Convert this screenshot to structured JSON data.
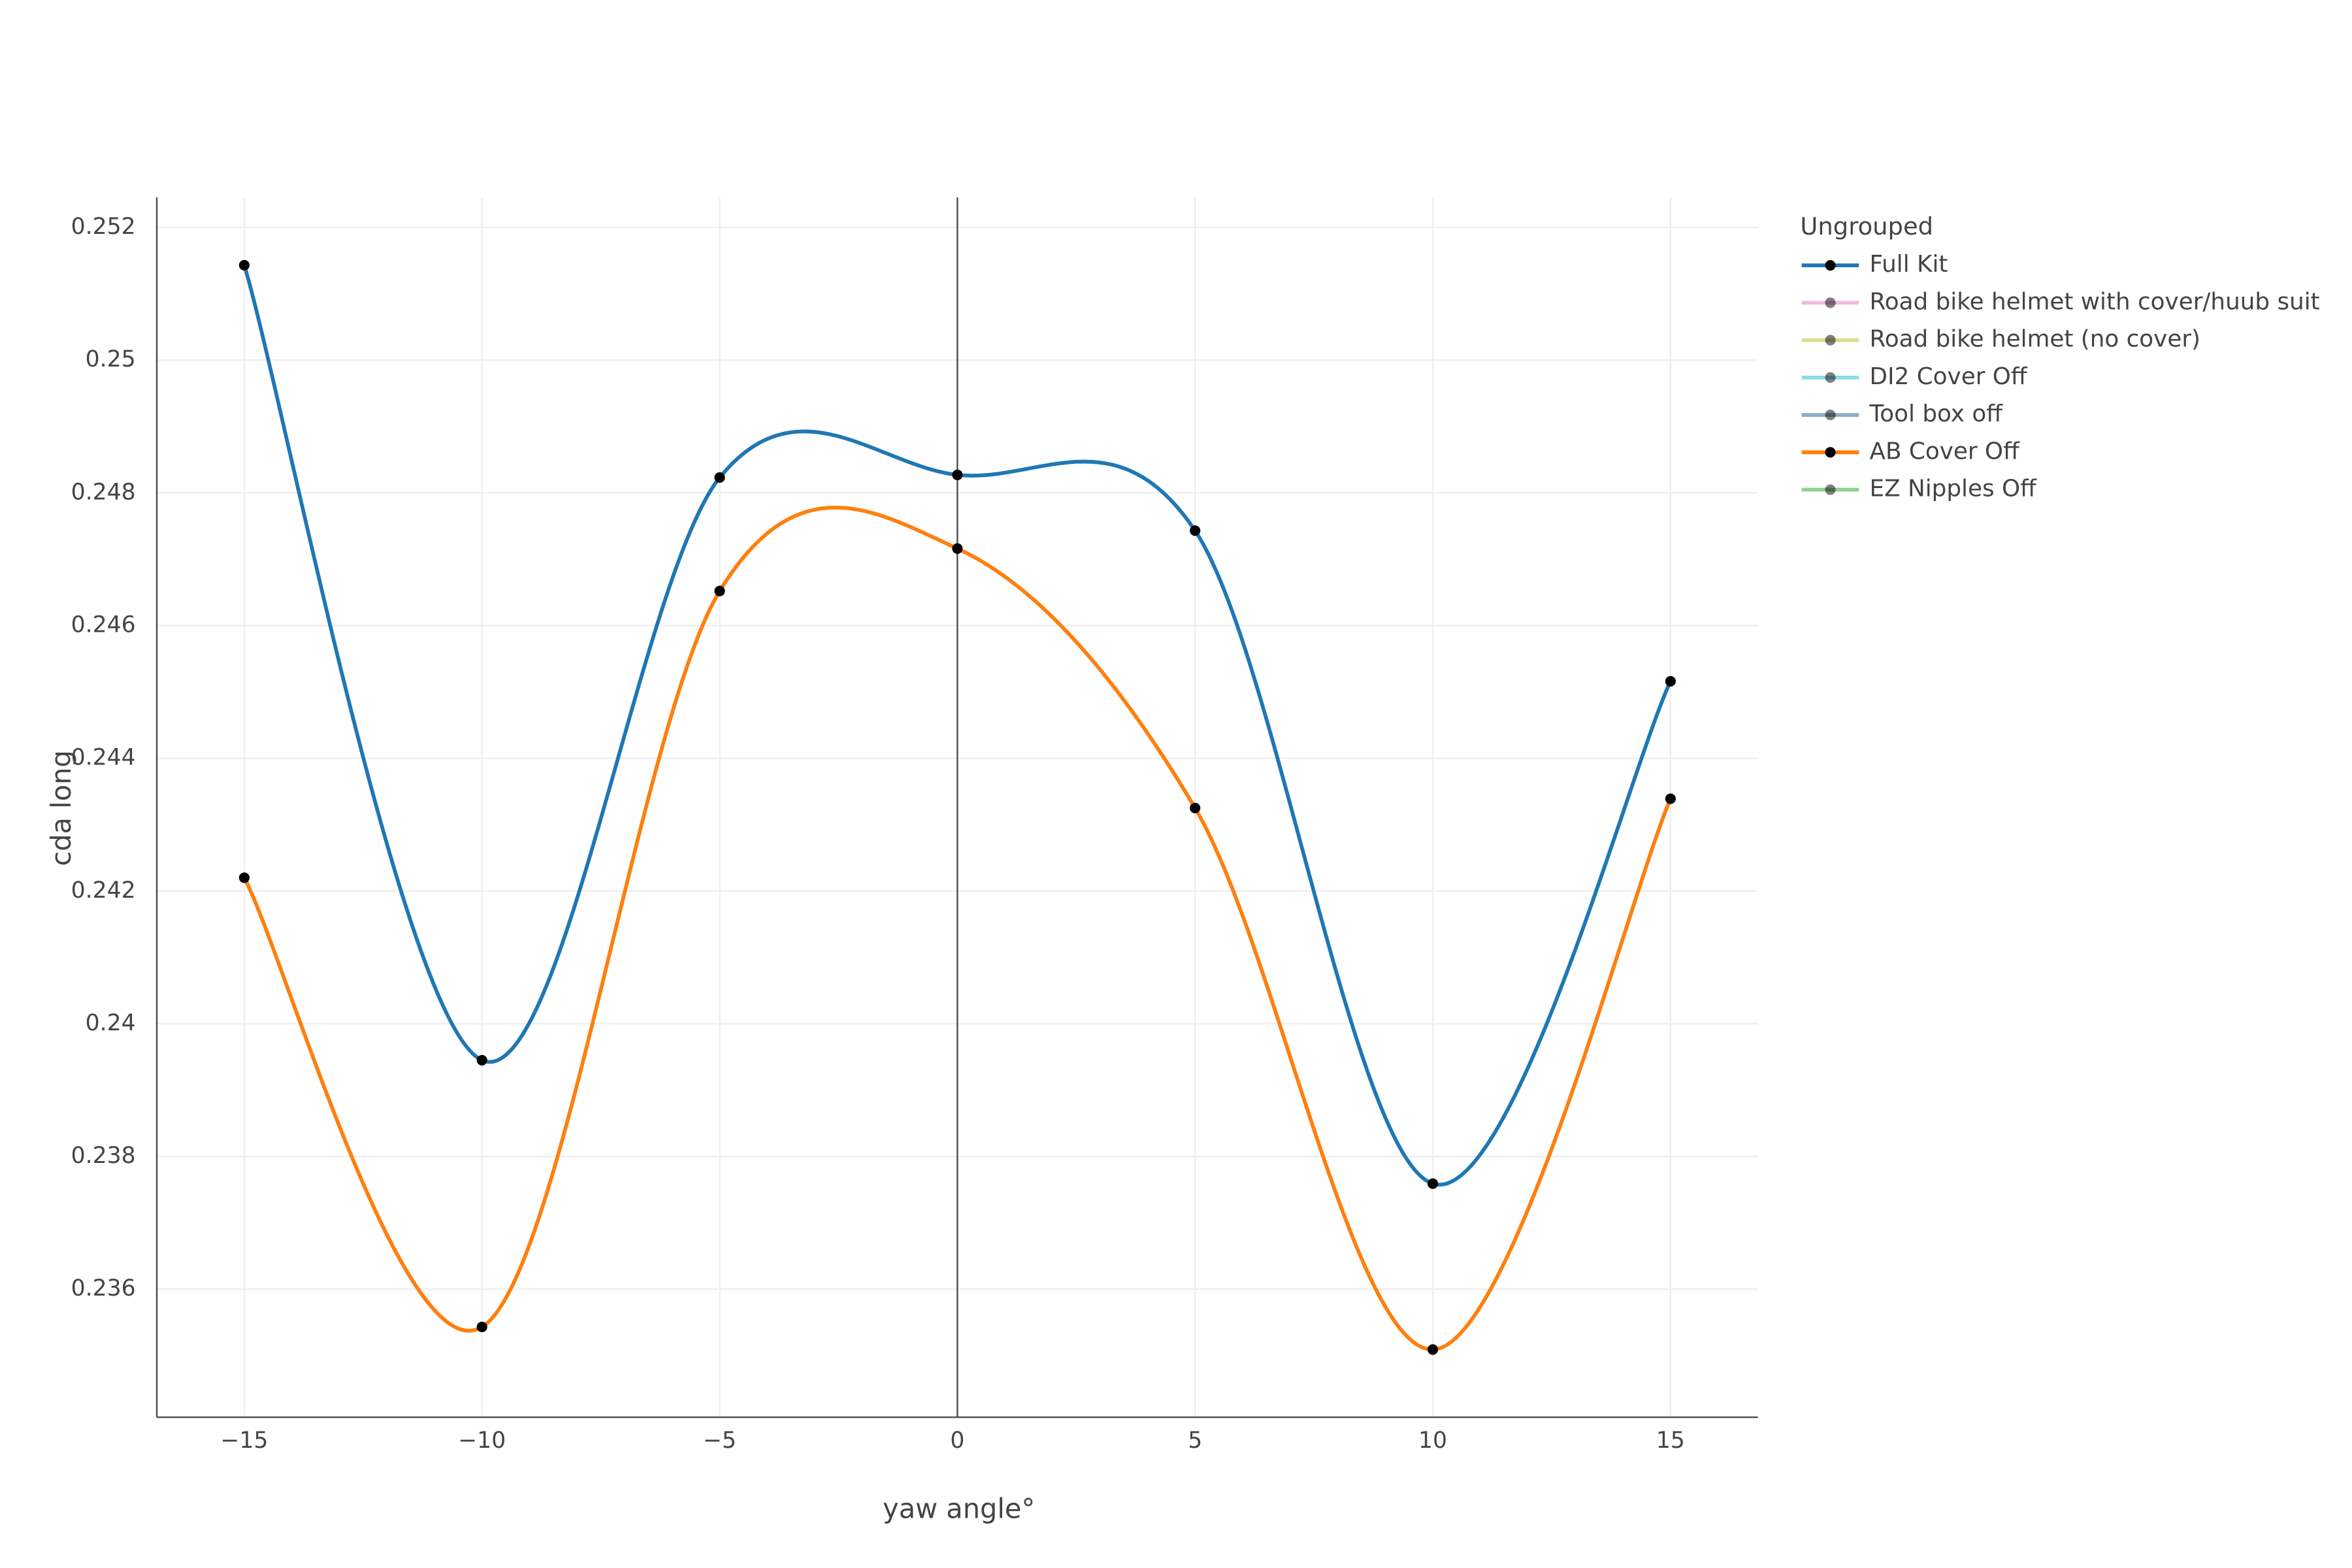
{
  "chart_data": {
    "type": "line",
    "x_label": "yaw angle°",
    "y_label": "cda long",
    "legend_title": "Ungrouped",
    "legend": "top-right-outside",
    "x": [
      -15,
      -10,
      -5,
      0,
      5,
      10,
      15
    ],
    "xlim": [
      -16.84,
      16.84
    ],
    "xticks": [
      {
        "value": -15,
        "label": "−15"
      },
      {
        "value": -10,
        "label": "−10"
      },
      {
        "value": -5,
        "label": "−5"
      },
      0,
      5,
      10,
      15
    ],
    "ylim": [
      0.23407,
      0.25245
    ],
    "yticks": [
      0.236,
      0.238,
      0.24,
      0.242,
      0.244,
      0.246,
      0.248,
      0.25,
      0.252
    ],
    "grid": true,
    "smooth": true,
    "zero_line": true,
    "marker_color": "#000000",
    "series": [
      {
        "name": "Full Kit",
        "color": "#1f77b4",
        "visible": true,
        "values": [
          0.25143,
          0.23945,
          0.24823,
          0.24827,
          0.24743,
          0.23759,
          0.24516
        ]
      },
      {
        "name": "Road bike helmet with cover/huub suit",
        "color": "#e377c2",
        "visible": false
      },
      {
        "name": "Road bike helmet (no cover)",
        "color": "#bcbd22",
        "visible": false
      },
      {
        "name": "DI2 Cover Off",
        "color": "#17becf",
        "visible": false
      },
      {
        "name": "Tool box off",
        "color": "#1f5f8b",
        "visible": false
      },
      {
        "name": "AB Cover Off",
        "color": "#ff7f0e",
        "visible": true,
        "values": [
          0.2422,
          0.23543,
          0.24652,
          0.24716,
          0.24325,
          0.23509,
          0.24339
        ]
      },
      {
        "name": "EZ Nipples Off",
        "color": "#2ca02c",
        "visible": false
      }
    ]
  }
}
